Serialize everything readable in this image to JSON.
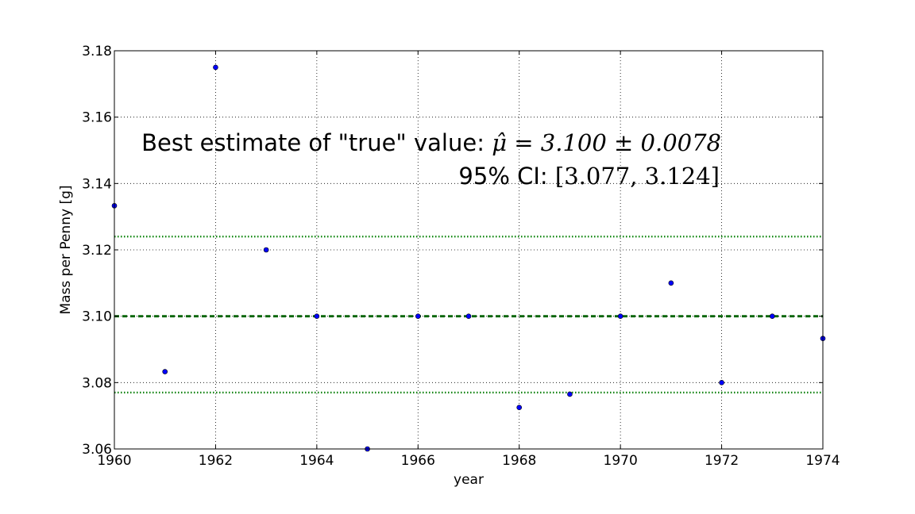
{
  "chart_data": {
    "type": "scatter",
    "title": "",
    "xlabel": "year",
    "ylabel": "Mass per Penny [g]",
    "xlim": [
      1960,
      1974
    ],
    "ylim": [
      3.06,
      3.18
    ],
    "xticks": [
      1960,
      1962,
      1964,
      1966,
      1968,
      1970,
      1972,
      1974
    ],
    "yticks": [
      3.06,
      3.08,
      3.1,
      3.12,
      3.14,
      3.16,
      3.18
    ],
    "ytick_labels": [
      "3.06",
      "3.08",
      "3.10",
      "3.12",
      "3.14",
      "3.16",
      "3.18"
    ],
    "grid": true,
    "points": {
      "x": [
        1960,
        1961,
        1962,
        1963,
        1964,
        1965,
        1966,
        1967,
        1968,
        1969,
        1970,
        1971,
        1972,
        1973,
        1974
      ],
      "y": [
        3.1333,
        3.0833,
        3.175,
        3.12,
        3.1,
        3.06,
        3.1,
        3.1,
        3.0725,
        3.0765,
        3.1,
        3.11,
        3.08,
        3.1,
        3.0933
      ],
      "color": "#0000ff"
    },
    "lines": [
      {
        "y": 3.1,
        "style": "dashed",
        "color": "#006400"
      },
      {
        "y": 3.124,
        "style": "dotted",
        "color": "#008000"
      },
      {
        "y": 3.077,
        "style": "dotted",
        "color": "#008000"
      }
    ],
    "annotations": {
      "line1_text": "Best estimate of \"true\" value: ",
      "line1_math": "μ̂ = 3.100 ± 0.0078",
      "line2_text": "95% CI: ",
      "line2_math": "[3.077, 3.124]"
    }
  }
}
